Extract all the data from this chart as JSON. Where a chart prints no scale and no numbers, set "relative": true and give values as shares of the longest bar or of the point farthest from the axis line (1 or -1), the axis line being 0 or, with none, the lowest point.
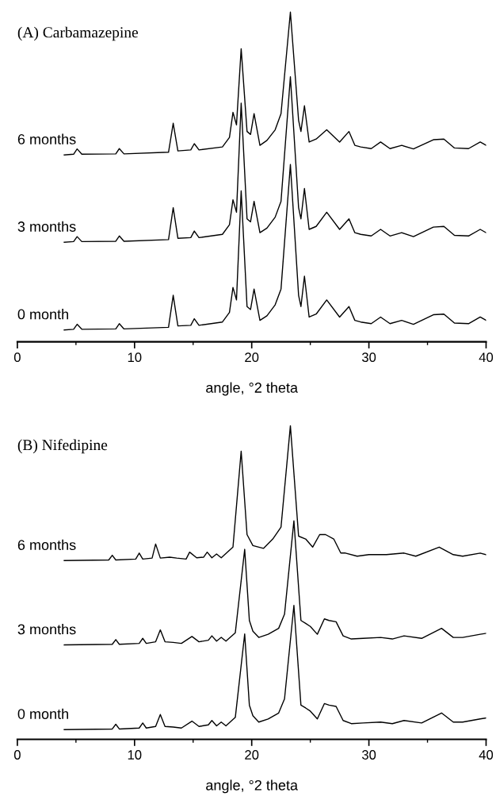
{
  "chart_data": [
    {
      "type": "line",
      "title": "(A) Carbamazepine",
      "xlabel": "angle, °2 theta",
      "relative": true,
      "xlim": [
        0,
        40
      ],
      "xticks": [
        0,
        10,
        20,
        30,
        40
      ],
      "tick_labels": "x",
      "series": [
        {
          "name": "0 month",
          "color": "#000000",
          "x": [
            4,
            4.8,
            5.1,
            5.5,
            8.4,
            8.7,
            9.1,
            12.9,
            13.3,
            13.7,
            14.8,
            15.1,
            15.5,
            17.5,
            18.1,
            18.4,
            18.7,
            19.1,
            19.6,
            19.9,
            20.2,
            20.7,
            21.3,
            22.0,
            22.5,
            23.3,
            24.0,
            24.2,
            24.5,
            24.9,
            25.5,
            26.4,
            27.5,
            28.3,
            28.8,
            29.3,
            30.2,
            31,
            31.8,
            32.8,
            33.8,
            35.5,
            36.4,
            37.3,
            38.5,
            39.5,
            40
          ],
          "values": [
            0.036,
            0.038,
            0.053,
            0.038,
            0.039,
            0.055,
            0.039,
            0.044,
            0.141,
            0.048,
            0.05,
            0.07,
            0.05,
            0.06,
            0.089,
            0.165,
            0.127,
            0.458,
            0.107,
            0.098,
            0.16,
            0.065,
            0.079,
            0.112,
            0.16,
            0.538,
            0.141,
            0.107,
            0.199,
            0.075,
            0.084,
            0.127,
            0.075,
            0.107,
            0.065,
            0.06,
            0.055,
            0.075,
            0.055,
            0.065,
            0.053,
            0.082,
            0.084,
            0.057,
            0.055,
            0.075,
            0.065
          ]
        },
        {
          "name": "3 months",
          "color": "#000000",
          "x": [
            4,
            4.8,
            5.1,
            5.5,
            8.4,
            8.7,
            9.1,
            12.9,
            13.3,
            13.7,
            14.8,
            15.1,
            15.5,
            17.5,
            18.1,
            18.4,
            18.7,
            19.1,
            19.6,
            19.9,
            20.2,
            20.7,
            21.3,
            22.0,
            22.5,
            23.3,
            24.0,
            24.2,
            24.5,
            24.9,
            25.5,
            26.4,
            27.5,
            28.3,
            28.8,
            29.3,
            30.2,
            31,
            31.8,
            32.8,
            33.8,
            35.5,
            36.4,
            37.3,
            38.5,
            39.5,
            40
          ],
          "values": [
            0.302,
            0.304,
            0.319,
            0.304,
            0.305,
            0.321,
            0.305,
            0.31,
            0.407,
            0.314,
            0.316,
            0.336,
            0.316,
            0.326,
            0.355,
            0.431,
            0.393,
            0.724,
            0.373,
            0.364,
            0.426,
            0.331,
            0.345,
            0.378,
            0.426,
            0.804,
            0.407,
            0.373,
            0.465,
            0.341,
            0.35,
            0.393,
            0.341,
            0.373,
            0.331,
            0.326,
            0.321,
            0.341,
            0.321,
            0.331,
            0.319,
            0.348,
            0.35,
            0.323,
            0.321,
            0.341,
            0.331
          ]
        },
        {
          "name": "6 months",
          "color": "#000000",
          "x": [
            4,
            4.8,
            5.1,
            5.5,
            8.4,
            8.7,
            9.1,
            12.9,
            13.3,
            13.7,
            14.8,
            15.1,
            15.5,
            17.5,
            18.1,
            18.4,
            18.7,
            19.1,
            19.6,
            19.9,
            20.2,
            20.7,
            21.3,
            22.0,
            22.5,
            23.3,
            24.0,
            24.2,
            24.5,
            24.9,
            25.5,
            26.4,
            27.5,
            28.3,
            28.8,
            29.3,
            30.2,
            31,
            31.8,
            32.8,
            33.8,
            35.5,
            36.4,
            37.3,
            38.5,
            39.5,
            40
          ],
          "values": [
            0.567,
            0.569,
            0.585,
            0.569,
            0.57,
            0.586,
            0.57,
            0.575,
            0.663,
            0.579,
            0.582,
            0.601,
            0.582,
            0.591,
            0.62,
            0.696,
            0.658,
            0.889,
            0.638,
            0.629,
            0.692,
            0.596,
            0.611,
            0.643,
            0.692,
            1.0,
            0.672,
            0.638,
            0.716,
            0.606,
            0.615,
            0.643,
            0.606,
            0.638,
            0.596,
            0.591,
            0.586,
            0.606,
            0.586,
            0.596,
            0.585,
            0.613,
            0.615,
            0.588,
            0.586,
            0.606,
            0.596
          ]
        }
      ]
    },
    {
      "type": "line",
      "title": "(B) Nifedipine",
      "xlabel": "angle, °2 theta",
      "relative": true,
      "xlim": [
        0,
        40
      ],
      "xticks": [
        0,
        10,
        20,
        30,
        40
      ],
      "tick_labels": "x",
      "series": [
        {
          "name": "0 month",
          "color": "#000000",
          "x": [
            4,
            8.1,
            8.4,
            8.7,
            10.4,
            10.7,
            11.0,
            11.8,
            12.2,
            12.6,
            13.3,
            14.0,
            14.9,
            15.5,
            16.3,
            16.6,
            17.0,
            17.4,
            17.8,
            18.6,
            19.4,
            19.8,
            20.1,
            20.6,
            21.4,
            22.3,
            22.8,
            23.6,
            24.2,
            24.6,
            25.0,
            25.6,
            26.2,
            26.6,
            27.2,
            27.8,
            28.5,
            29.5,
            31,
            32,
            33,
            34.5,
            36.2,
            37.2,
            38,
            39.5,
            40
          ],
          "values": [
            0.031,
            0.033,
            0.048,
            0.033,
            0.036,
            0.052,
            0.036,
            0.041,
            0.079,
            0.041,
            0.039,
            0.036,
            0.058,
            0.041,
            0.046,
            0.06,
            0.043,
            0.055,
            0.043,
            0.07,
            0.336,
            0.109,
            0.075,
            0.055,
            0.065,
            0.084,
            0.129,
            0.427,
            0.109,
            0.1,
            0.09,
            0.065,
            0.114,
            0.109,
            0.105,
            0.06,
            0.05,
            0.052,
            0.055,
            0.05,
            0.06,
            0.052,
            0.084,
            0.055,
            0.055,
            0.065,
            0.068
          ]
        },
        {
          "name": "3 months",
          "color": "#000000",
          "x": [
            4,
            8.1,
            8.4,
            8.7,
            10.4,
            10.7,
            11.0,
            11.8,
            12.2,
            12.6,
            13.3,
            14.0,
            14.9,
            15.5,
            16.3,
            16.6,
            17.0,
            17.4,
            17.8,
            18.6,
            19.4,
            19.8,
            20.1,
            20.6,
            21.4,
            22.3,
            22.8,
            23.6,
            24.2,
            24.6,
            25.0,
            25.6,
            26.2,
            26.6,
            27.2,
            27.8,
            28.5,
            29.5,
            31,
            32,
            33,
            34.5,
            36.2,
            37.2,
            38,
            39.5,
            40
          ],
          "values": [
            0.301,
            0.303,
            0.318,
            0.303,
            0.306,
            0.322,
            0.306,
            0.311,
            0.349,
            0.311,
            0.309,
            0.306,
            0.328,
            0.311,
            0.316,
            0.33,
            0.313,
            0.325,
            0.313,
            0.34,
            0.606,
            0.379,
            0.345,
            0.325,
            0.335,
            0.354,
            0.399,
            0.697,
            0.379,
            0.37,
            0.36,
            0.335,
            0.384,
            0.379,
            0.375,
            0.33,
            0.32,
            0.322,
            0.325,
            0.32,
            0.33,
            0.322,
            0.354,
            0.325,
            0.325,
            0.335,
            0.338
          ]
        },
        {
          "name": "6 months",
          "color": "#000000",
          "x": [
            4,
            7.8,
            8.1,
            8.4,
            10.1,
            10.4,
            10.7,
            11.5,
            11.8,
            12.2,
            13.0,
            13.6,
            14.4,
            14.7,
            15.3,
            15.9,
            16.2,
            16.6,
            17.0,
            17.4,
            18.4,
            19.1,
            19.6,
            20.1,
            21.0,
            21.8,
            22.5,
            23.3,
            24.0,
            24.6,
            25.2,
            25.8,
            26.3,
            27.0,
            27.6,
            28.0,
            29,
            30,
            31.5,
            33,
            34,
            36,
            37.2,
            38,
            39.5,
            40
          ],
          "values": [
            0.57,
            0.572,
            0.587,
            0.572,
            0.575,
            0.594,
            0.575,
            0.578,
            0.623,
            0.578,
            0.581,
            0.578,
            0.575,
            0.597,
            0.579,
            0.581,
            0.597,
            0.579,
            0.591,
            0.579,
            0.613,
            0.919,
            0.653,
            0.618,
            0.609,
            0.639,
            0.677,
            1.0,
            0.648,
            0.639,
            0.613,
            0.653,
            0.653,
            0.639,
            0.594,
            0.594,
            0.584,
            0.589,
            0.589,
            0.594,
            0.584,
            0.613,
            0.589,
            0.584,
            0.594,
            0.589
          ]
        }
      ]
    }
  ]
}
